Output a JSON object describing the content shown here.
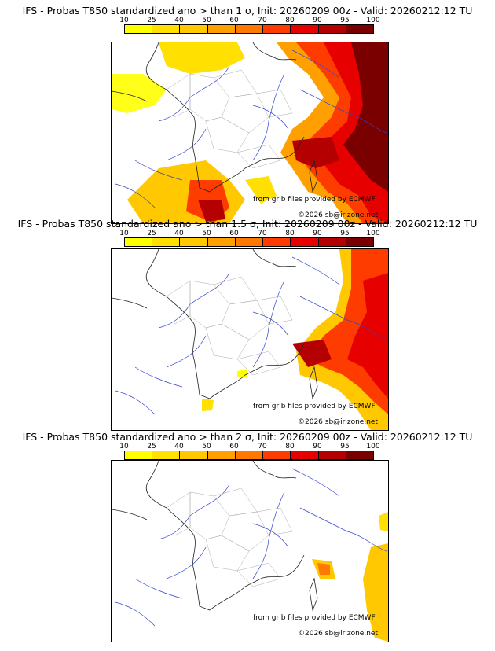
{
  "colorbar": {
    "ticks": [
      "10",
      "25",
      "40",
      "50",
      "60",
      "70",
      "80",
      "90",
      "95",
      "100"
    ],
    "colors": [
      "#ffff00",
      "#ffe000",
      "#ffc800",
      "#ffa000",
      "#ff7800",
      "#ff3c00",
      "#e60000",
      "#b40000",
      "#7a0000"
    ]
  },
  "panels": [
    {
      "title": "IFS - Probas T850  standardized ano > than 1 σ, Init: 20260209 00z - Valid: 20260212:12 TU",
      "credit1": "from grib files provided by ECMWF",
      "credit2": "©2026 sb@irizone.net"
    },
    {
      "title": "IFS - Probas T850  standardized ano > than 1.5 σ, Init: 20260209 00z - Valid: 20260212:12 TU",
      "credit1": "from grib files provided by ECMWF",
      "credit2": "©2026 sb@irizone.net"
    },
    {
      "title": "IFS - Probas T850  standardized ano > than 2 σ, Init: 20260209 00z - Valid: 20260212:12 TU",
      "credit1": "from grib files provided by ECMWF",
      "credit2": "©2026 sb@irizone.net"
    }
  ]
}
